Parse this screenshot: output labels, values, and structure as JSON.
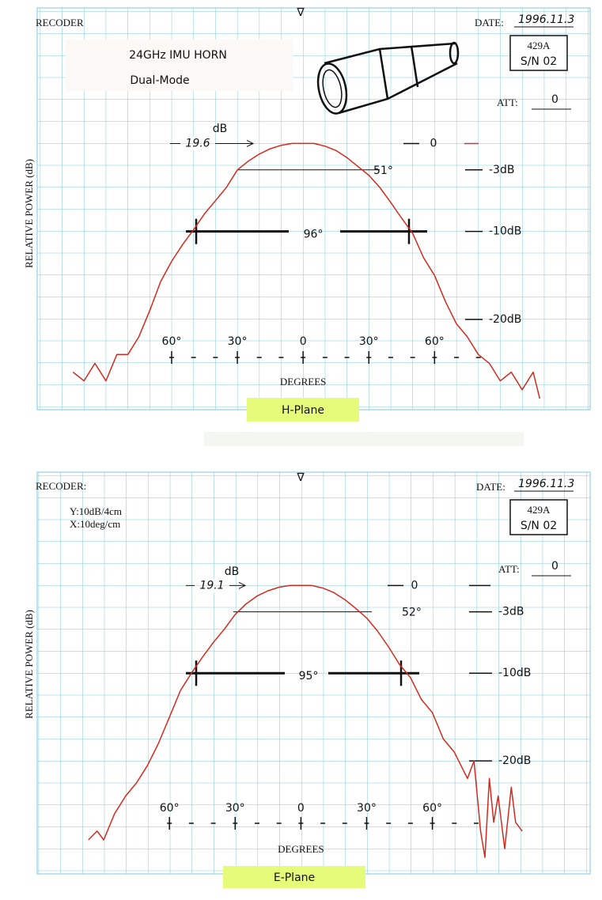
{
  "chart_data": [
    {
      "type": "line",
      "title": "24GHz IMU HORN",
      "subtitle": "Dual-Mode",
      "recorder": "RECODER",
      "marker": "∇",
      "date_label": "DATE:",
      "date": "1996.11.3",
      "model": "429A",
      "serial": "S/N 02",
      "att_label": "ATT:",
      "att": "0",
      "ylabel": "RELATIVE POWER (dB)",
      "xlabel": "DEGREES",
      "plane": "H-Plane",
      "peak": "19.6",
      "peak_unit": "dB",
      "bw3": "51°",
      "bw10": "96°",
      "color": "#d42a1e",
      "x": [
        -105,
        -100,
        -95,
        -90,
        -85,
        -80,
        -75,
        -70,
        -65,
        -60,
        -55,
        -50,
        -45,
        -40,
        -35,
        -30,
        -25,
        -20,
        -15,
        -10,
        -5,
        0,
        5,
        10,
        15,
        20,
        25,
        30,
        35,
        40,
        45,
        50,
        55,
        60,
        65,
        70,
        75,
        80,
        85,
        90,
        95,
        100,
        105,
        108
      ],
      "values": [
        -26,
        -27,
        -25,
        -27,
        -24,
        -24,
        -22,
        -19,
        -15.7,
        -13.4,
        -11.5,
        -9.8,
        -8,
        -6.5,
        -5,
        -3,
        -2,
        -1.2,
        -0.6,
        -0.2,
        0,
        0,
        0,
        -0.3,
        -0.8,
        -1.6,
        -2.6,
        -3.6,
        -5,
        -6.7,
        -8.5,
        -10.2,
        -13,
        -15,
        -18,
        -20.5,
        -22,
        -24,
        -25,
        -27,
        -26,
        -28,
        -26,
        -29
      ],
      "xlim": [
        -121,
        131
      ],
      "ylim": [
        -30,
        14.7
      ],
      "xticks": [
        {
          "value": -60,
          "label": "60°"
        },
        {
          "value": -30,
          "label": "30°"
        },
        0,
        {
          "value": 30,
          "label": "30°"
        },
        {
          "value": 60,
          "label": "60°"
        }
      ],
      "yticks": [
        0,
        {
          "value": -3,
          "label": "-3dB"
        },
        {
          "value": -10,
          "label": "-10dB"
        },
        {
          "value": -20,
          "label": "-20dB"
        }
      ]
    },
    {
      "type": "line",
      "recorder": "RECODER:",
      "marker": "∇",
      "date_label": "DATE:",
      "date": "1996.11.3",
      "model": "429A",
      "serial": "S/N 02",
      "att_label": "ATT:",
      "att": "0",
      "scale_notes": [
        "Y:10dB/4cm",
        "X:10deg/cm"
      ],
      "ylabel": "RELATIVE POWER (dB)",
      "xlabel": "DEGREES",
      "plane": "E-Plane",
      "peak": "19.1",
      "peak_unit": "dB",
      "bw3": "52°",
      "bw10": "95°",
      "color": "#d42a1e",
      "x": [
        -97,
        -93,
        -90,
        -85,
        -80,
        -75,
        -70,
        -65,
        -60,
        -55,
        -50,
        -45,
        -40,
        -35,
        -30,
        -25,
        -20,
        -15,
        -10,
        -5,
        0,
        5,
        10,
        15,
        20,
        25,
        30,
        35,
        40,
        45,
        50,
        55,
        60,
        65,
        70,
        73,
        76,
        79,
        82,
        84,
        86,
        88,
        90,
        93,
        96,
        98,
        101
      ],
      "values": [
        -29,
        -28,
        -29,
        -26,
        -24,
        -22.5,
        -20.5,
        -18,
        -15,
        -12,
        -10,
        -8.2,
        -6.5,
        -5,
        -3.3,
        -2.1,
        -1.2,
        -0.6,
        -0.2,
        0,
        0,
        0,
        -0.3,
        -0.8,
        -1.6,
        -2.6,
        -3.7,
        -5.2,
        -7,
        -9,
        -10.5,
        -13,
        -14.5,
        -17.5,
        -19,
        -20.5,
        -22,
        -20,
        -28,
        -31,
        -22,
        -27,
        -24,
        -30,
        -23,
        -27,
        -28
      ],
      "xlim": [
        -120,
        132
      ],
      "ylim": [
        -32.7,
        12.2
      ],
      "xticks": [
        {
          "value": -60,
          "label": "60°"
        },
        {
          "value": -30,
          "label": "30°"
        },
        0,
        {
          "value": 30,
          "label": "30°"
        },
        {
          "value": 60,
          "label": "60°"
        }
      ],
      "yticks": [
        0,
        {
          "value": -3,
          "label": "-3dB"
        },
        {
          "value": -10,
          "label": "-10dB"
        },
        {
          "value": -20,
          "label": "-20dB"
        }
      ]
    }
  ]
}
